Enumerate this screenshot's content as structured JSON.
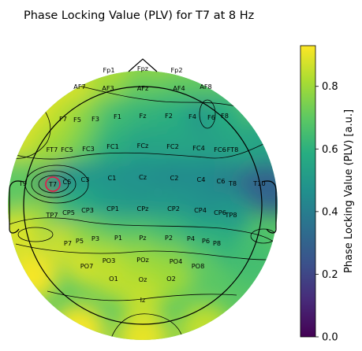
{
  "chart_data": {
    "type": "heatmap",
    "subtype": "eeg-topomap",
    "title": "Phase Locking Value (PLV) for T7 at 8 Hz",
    "seed_electrode": "T7",
    "frequency_hz": 8,
    "colormap": "viridis",
    "colorbar": {
      "label": "Phase Locking Value (PLV) [a.u.]",
      "range": [
        0.0,
        0.93
      ],
      "ticks": [
        {
          "value": 0.0,
          "label": "0.0"
        },
        {
          "value": 0.2,
          "label": "0.2"
        },
        {
          "value": 0.4,
          "label": "0.4"
        },
        {
          "value": 0.6,
          "label": "0.6"
        },
        {
          "value": 0.8,
          "label": "0.8"
        }
      ]
    },
    "electrodes": [
      {
        "name": "Fp1",
        "plv": 0.85
      },
      {
        "name": "Fpz",
        "plv": 0.8
      },
      {
        "name": "Fp2",
        "plv": 0.8
      },
      {
        "name": "AF7",
        "plv": 0.88
      },
      {
        "name": "AF3",
        "plv": 0.8
      },
      {
        "name": "AFz",
        "plv": 0.72
      },
      {
        "name": "AF4",
        "plv": 0.7
      },
      {
        "name": "AF8",
        "plv": 0.7
      },
      {
        "name": "F7",
        "plv": 0.85
      },
      {
        "name": "F5",
        "plv": 0.82
      },
      {
        "name": "F3",
        "plv": 0.75
      },
      {
        "name": "F1",
        "plv": 0.65
      },
      {
        "name": "Fz",
        "plv": 0.62
      },
      {
        "name": "F2",
        "plv": 0.6
      },
      {
        "name": "F4",
        "plv": 0.58
      },
      {
        "name": "F6",
        "plv": 0.45
      },
      {
        "name": "F8",
        "plv": 0.58
      },
      {
        "name": "FT7",
        "plv": 0.8
      },
      {
        "name": "FC5",
        "plv": 0.8
      },
      {
        "name": "FC3",
        "plv": 0.72
      },
      {
        "name": "FC1",
        "plv": 0.6
      },
      {
        "name": "FCz",
        "plv": 0.55
      },
      {
        "name": "FC2",
        "plv": 0.55
      },
      {
        "name": "FC4",
        "plv": 0.55
      },
      {
        "name": "FC6",
        "plv": 0.52
      },
      {
        "name": "FT8",
        "plv": 0.55
      },
      {
        "name": "T9",
        "plv": 0.7
      },
      {
        "name": "T7",
        "plv": 0.0
      },
      {
        "name": "C5",
        "plv": 0.4
      },
      {
        "name": "C3",
        "plv": 0.5
      },
      {
        "name": "C1",
        "plv": 0.48
      },
      {
        "name": "Cz",
        "plv": 0.47
      },
      {
        "name": "C2",
        "plv": 0.45
      },
      {
        "name": "C4",
        "plv": 0.45
      },
      {
        "name": "C6",
        "plv": 0.45
      },
      {
        "name": "T8",
        "plv": 0.42
      },
      {
        "name": "T10",
        "plv": 0.3
      },
      {
        "name": "TP7",
        "plv": 0.8
      },
      {
        "name": "CP5",
        "plv": 0.65
      },
      {
        "name": "CP3",
        "plv": 0.58
      },
      {
        "name": "CP1",
        "plv": 0.52
      },
      {
        "name": "CPz",
        "plv": 0.5
      },
      {
        "name": "CP2",
        "plv": 0.5
      },
      {
        "name": "CP4",
        "plv": 0.48
      },
      {
        "name": "CP6",
        "plv": 0.45
      },
      {
        "name": "TP8",
        "plv": 0.5
      },
      {
        "name": "P7",
        "plv": 0.9
      },
      {
        "name": "P5",
        "plv": 0.82
      },
      {
        "name": "P3",
        "plv": 0.75
      },
      {
        "name": "P1",
        "plv": 0.68
      },
      {
        "name": "Pz",
        "plv": 0.68
      },
      {
        "name": "P2",
        "plv": 0.65
      },
      {
        "name": "P4",
        "plv": 0.62
      },
      {
        "name": "P6",
        "plv": 0.58
      },
      {
        "name": "P8",
        "plv": 0.6
      },
      {
        "name": "PO7",
        "plv": 0.88
      },
      {
        "name": "PO3",
        "plv": 0.82
      },
      {
        "name": "POz",
        "plv": 0.78
      },
      {
        "name": "PO4",
        "plv": 0.75
      },
      {
        "name": "PO8",
        "plv": 0.7
      },
      {
        "name": "O1",
        "plv": 0.85
      },
      {
        "name": "Oz",
        "plv": 0.82
      },
      {
        "name": "O2",
        "plv": 0.8
      },
      {
        "name": "Iz",
        "plv": 0.85
      }
    ]
  }
}
